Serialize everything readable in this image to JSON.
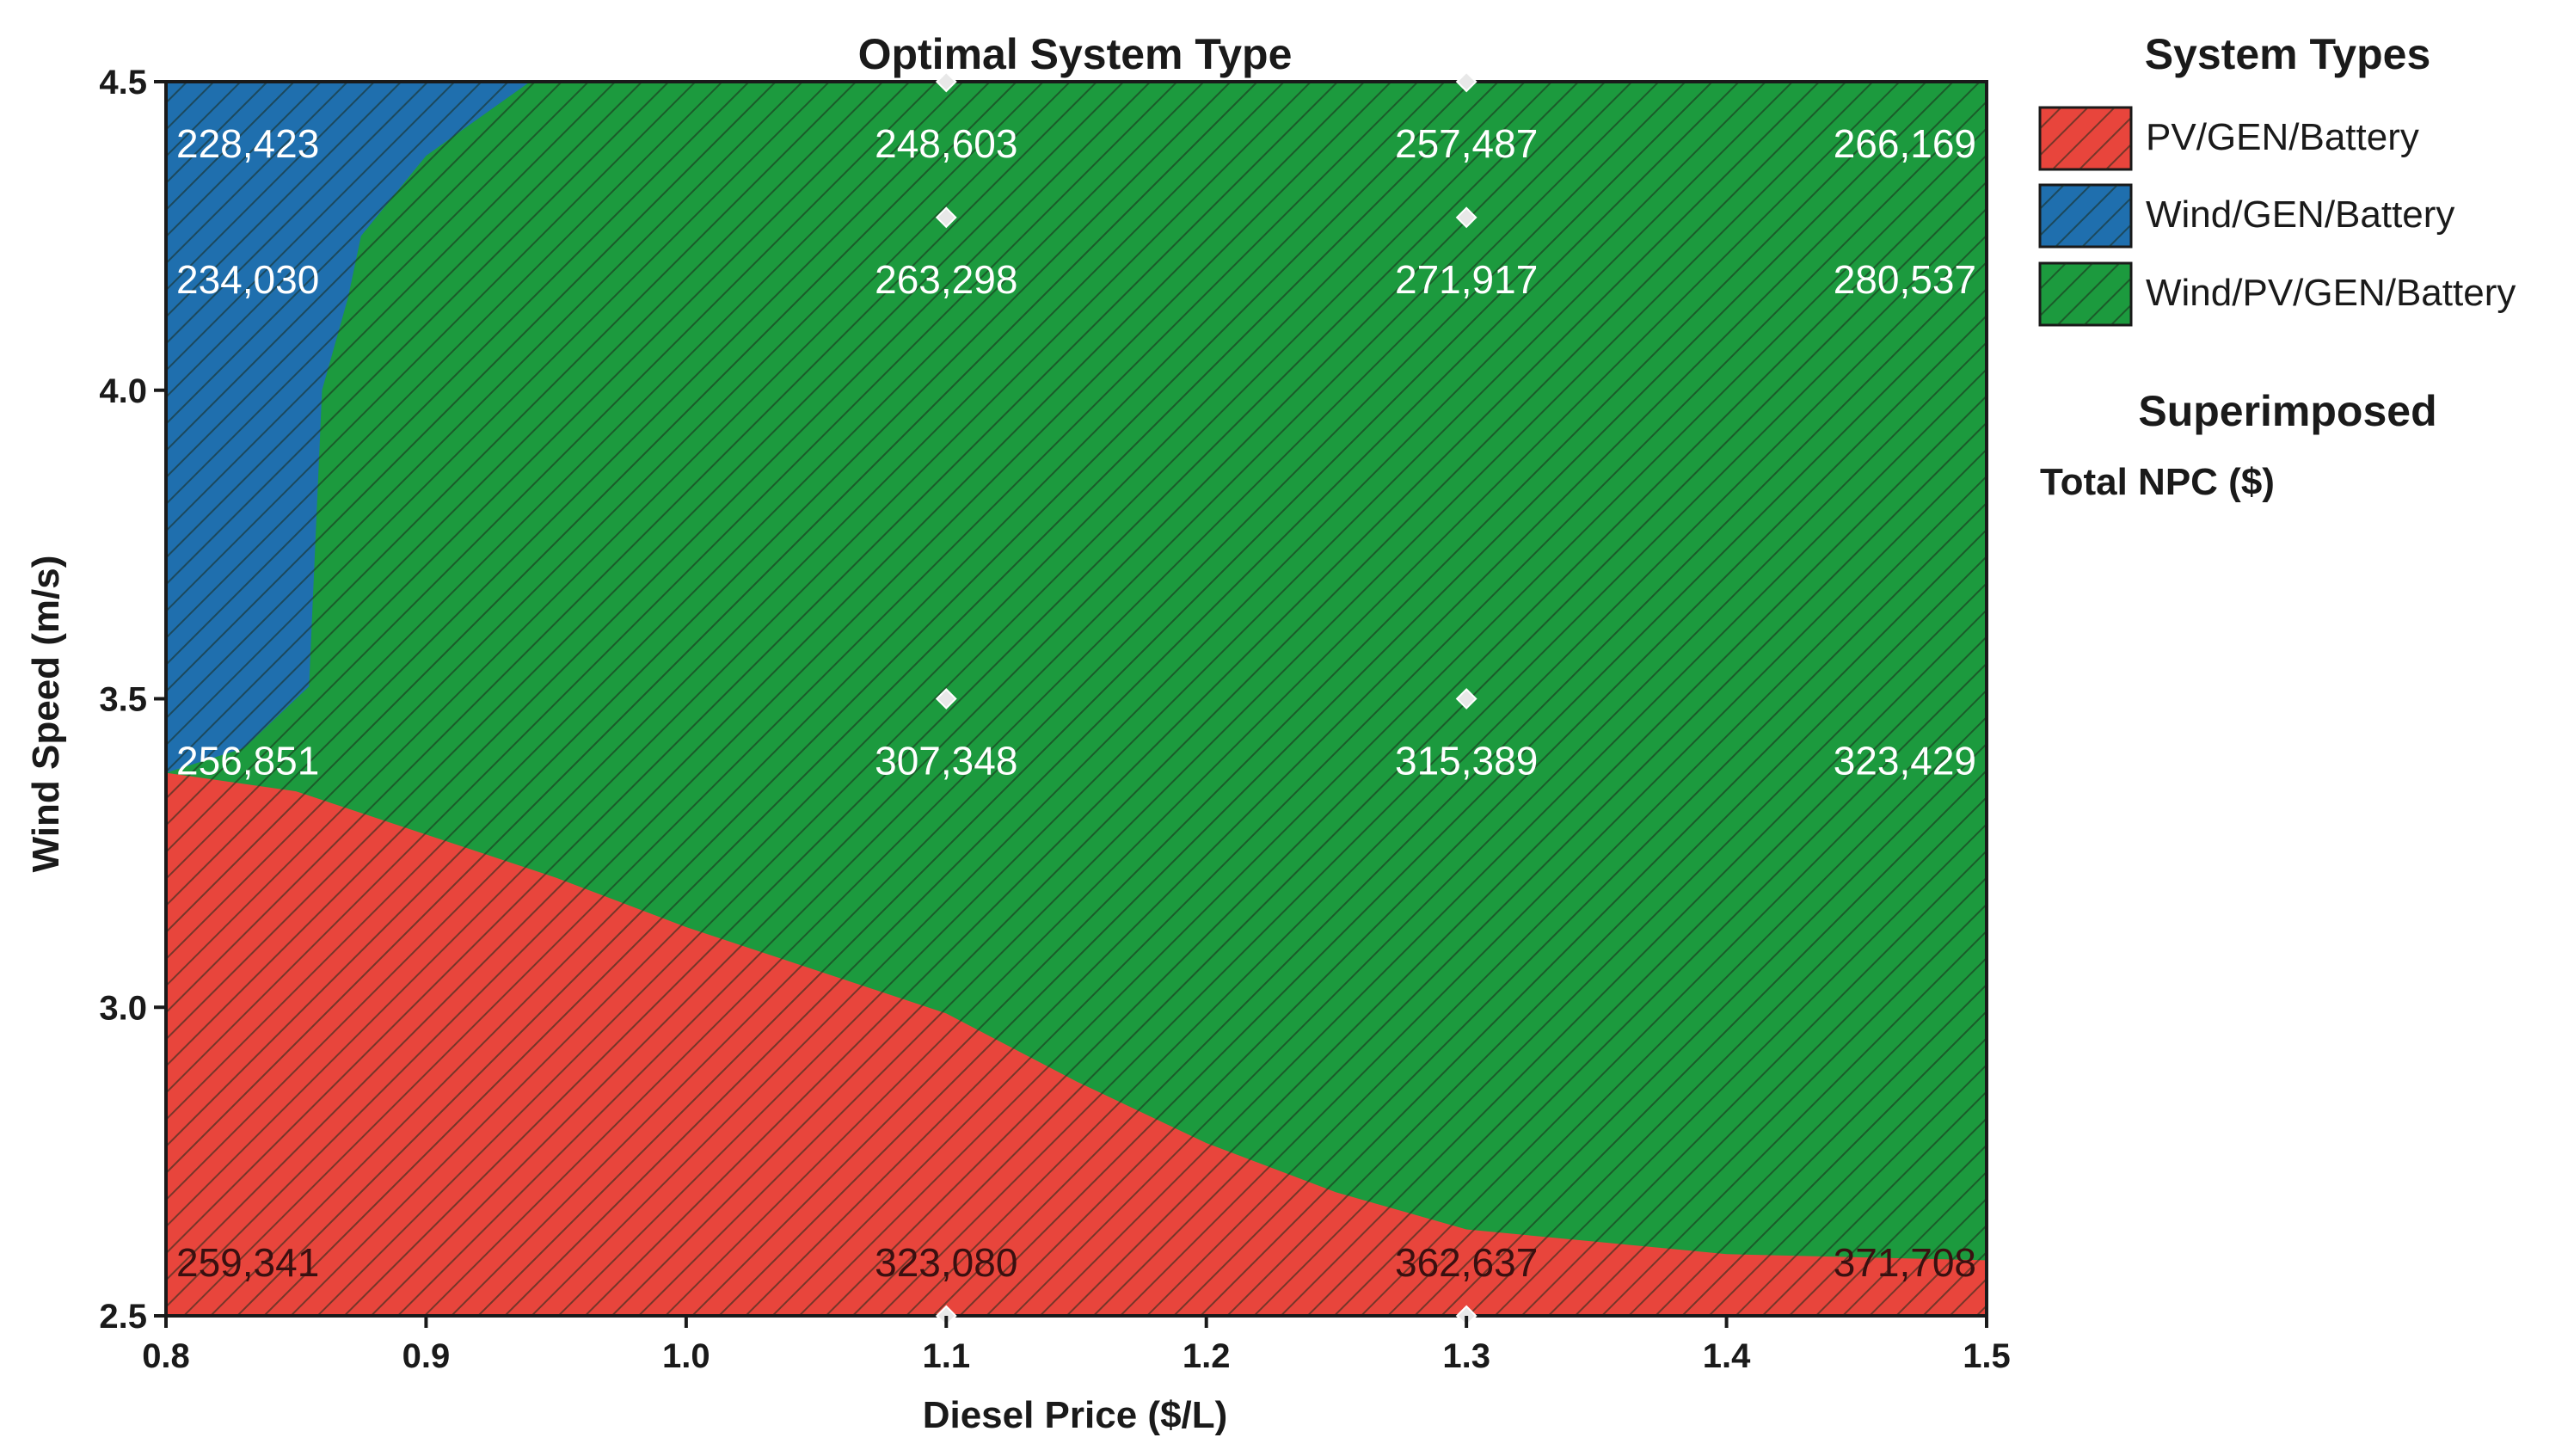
{
  "colors": {
    "pv_gen_battery": "#e8453c",
    "wind_gen_battery": "#1f6fae",
    "wind_pv_gen_battery": "#1c9a3e",
    "hatch": "#1a3a1a"
  },
  "chart_data": {
    "type": "heatmap",
    "title": "Optimal System Type",
    "xlabel": "Diesel Price ($/L)",
    "ylabel": "Wind Speed (m/s)",
    "xlim": [
      0.8,
      1.5
    ],
    "ylim": [
      2.5,
      4.5
    ],
    "x_ticks": [
      "0.8",
      "0.9",
      "1.0",
      "1.1",
      "1.2",
      "1.3",
      "1.4",
      "1.5"
    ],
    "y_ticks": [
      "2.5",
      "3.0",
      "3.5",
      "4.0",
      "4.5"
    ],
    "legend": {
      "title": "System Types",
      "entries": [
        "PV/GEN/Battery",
        "Wind/GEN/Battery",
        "Wind/PV/GEN/Battery"
      ],
      "superimposed_title": "Superimposed",
      "superimposed_label": "Total NPC ($)"
    },
    "regions": [
      {
        "name": "PV/GEN/Battery",
        "boundary_top": [
          [
            0.8,
            3.38
          ],
          [
            0.85,
            3.35
          ],
          [
            0.9,
            3.28
          ],
          [
            0.95,
            3.21
          ],
          [
            1.0,
            3.13
          ],
          [
            1.05,
            3.06
          ],
          [
            1.1,
            2.99
          ],
          [
            1.15,
            2.88
          ],
          [
            1.2,
            2.78
          ],
          [
            1.25,
            2.7
          ],
          [
            1.3,
            2.64
          ],
          [
            1.35,
            2.62
          ],
          [
            1.4,
            2.6
          ],
          [
            1.45,
            2.595
          ],
          [
            1.5,
            2.59
          ]
        ]
      },
      {
        "name": "Wind/GEN/Battery",
        "boundary": [
          [
            0.8,
            3.38
          ],
          [
            0.83,
            3.42
          ],
          [
            0.855,
            3.52
          ],
          [
            0.86,
            4.0
          ],
          [
            0.87,
            4.15
          ],
          [
            0.875,
            4.25
          ],
          [
            0.9,
            4.38
          ],
          [
            0.94,
            4.5
          ],
          [
            0.8,
            4.5
          ]
        ]
      },
      {
        "name": "Wind/PV/GEN/Battery",
        "fill": "rest"
      }
    ],
    "npc_values": [
      {
        "x": 0.8,
        "y": 4.5,
        "label": "228,423"
      },
      {
        "x": 1.1,
        "y": 4.5,
        "label": "248,603"
      },
      {
        "x": 1.3,
        "y": 4.5,
        "label": "257,487"
      },
      {
        "x": 1.5,
        "y": 4.5,
        "label": "266,169"
      },
      {
        "x": 0.8,
        "y": 4.28,
        "label": "234,030"
      },
      {
        "x": 1.1,
        "y": 4.28,
        "label": "263,298"
      },
      {
        "x": 1.3,
        "y": 4.28,
        "label": "271,917"
      },
      {
        "x": 1.5,
        "y": 4.28,
        "label": "280,537"
      },
      {
        "x": 0.8,
        "y": 3.5,
        "label": "256,851"
      },
      {
        "x": 1.1,
        "y": 3.5,
        "label": "307,348"
      },
      {
        "x": 1.3,
        "y": 3.5,
        "label": "315,389"
      },
      {
        "x": 1.5,
        "y": 3.5,
        "label": "323,429"
      },
      {
        "x": 0.8,
        "y": 2.5,
        "label": "259,341"
      },
      {
        "x": 1.1,
        "y": 2.5,
        "label": "323,080"
      },
      {
        "x": 1.3,
        "y": 2.5,
        "label": "362,637"
      },
      {
        "x": 1.5,
        "y": 2.5,
        "label": "371,708"
      }
    ],
    "markers": [
      {
        "x": 1.1,
        "y": 4.28
      },
      {
        "x": 1.3,
        "y": 4.28
      },
      {
        "x": 1.1,
        "y": 3.5
      },
      {
        "x": 1.3,
        "y": 3.5
      },
      {
        "x": 1.1,
        "y": 4.5
      },
      {
        "x": 1.3,
        "y": 4.5
      },
      {
        "x": 1.1,
        "y": 2.5
      },
      {
        "x": 1.3,
        "y": 2.5
      }
    ]
  }
}
